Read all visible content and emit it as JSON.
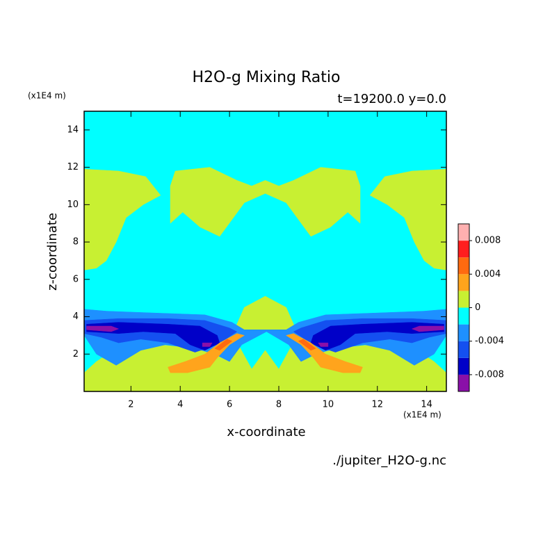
{
  "chart_data": {
    "type": "contour",
    "title": "H2O-g Mixing Ratio",
    "subtitle": "t=19200.0 y=0.0",
    "x_label": "x-coordinate",
    "y_label": "z-coordinate",
    "x_unit": "(x1E4 m)",
    "y_unit": "(x1E4 m)",
    "footer": "./jupiter_H2O-g.nc",
    "xlim": [
      0.1,
      14.8
    ],
    "ylim": [
      0,
      15
    ],
    "xticks": [
      2,
      4,
      6,
      8,
      10,
      12,
      14
    ],
    "yticks": [
      2,
      4,
      6,
      8,
      10,
      12,
      14
    ],
    "levels": [
      -0.01,
      -0.008,
      -0.006,
      -0.004,
      -0.002,
      0,
      0.002,
      0.004,
      0.006,
      0.008,
      0.01
    ],
    "colors": [
      "#8a10a8",
      "#0000c8",
      "#1450f0",
      "#1e90ff",
      "#00ffff",
      "#c8f032",
      "#ffa41c",
      "#ff6a10",
      "#ff1e1e",
      "#ffb0b0"
    ],
    "colorbar_ticks": [
      -0.008,
      -0.004,
      0,
      0.004,
      0.008
    ],
    "regions": [
      {
        "level": -0.002,
        "x": [
          0.1,
          14.8,
          14.8,
          0.1
        ],
        "y": [
          0,
          0,
          15,
          15
        ]
      },
      {
        "level": 0,
        "x": [
          0.1,
          14.8,
          14.8,
          14.3,
          13.5,
          12.5,
          11,
          10,
          9.4,
          8.5,
          8.0,
          7.45,
          6.9,
          6.4,
          5.5,
          4.9,
          3.9,
          2.4,
          1.4,
          0.6,
          0.1
        ],
        "y": [
          0,
          0,
          1.0,
          1.6,
          2.3,
          2.6,
          2.4,
          2.8,
          2.9,
          2.4,
          1.2,
          2.2,
          1.2,
          2.4,
          2.9,
          2.8,
          2.4,
          2.6,
          2.3,
          1.6,
          1.0
        ]
      },
      {
        "level": 0,
        "x": [
          6.2,
          6.6,
          7.45,
          8.3,
          8.7
        ],
        "y": [
          3.3,
          4.5,
          5.1,
          4.5,
          3.3
        ]
      },
      {
        "level": 0,
        "x": [
          0.1,
          0.1,
          1.5,
          2.6,
          3.2,
          2.5,
          1.8,
          1.4,
          1.0,
          0.6
        ],
        "y": [
          6.5,
          11.9,
          11.8,
          11.5,
          10.5,
          10.0,
          9.3,
          8.0,
          7.0,
          6.6
        ]
      },
      {
        "level": 0,
        "x": [
          14.8,
          14.8,
          13.4,
          12.3,
          11.7,
          12.4,
          13.1,
          13.5,
          13.9,
          14.3
        ],
        "y": [
          6.5,
          11.9,
          11.8,
          11.5,
          10.5,
          10.0,
          9.3,
          8.0,
          7.0,
          6.6
        ]
      },
      {
        "level": 0,
        "x": [
          3.8,
          5.2,
          6.3,
          6.9,
          7.45,
          8.0,
          8.6,
          9.7,
          11.1,
          11.3,
          11.3,
          10.8,
          10.1,
          9.3,
          8.8,
          8.3,
          7.45,
          6.6,
          6.1,
          5.6,
          4.8,
          4.1,
          3.6,
          3.6
        ],
        "y": [
          11.8,
          12.0,
          11.3,
          11.0,
          11.3,
          11.0,
          11.3,
          12.0,
          11.8,
          11.0,
          9.0,
          9.6,
          8.8,
          8.3,
          9.2,
          10.1,
          10.6,
          10.1,
          9.2,
          8.3,
          8.8,
          9.6,
          9.0,
          11.0
        ]
      },
      {
        "level": -0.004,
        "x": [
          0.1,
          0.1,
          1,
          3,
          5,
          6.1,
          6.6,
          8.3,
          8.8,
          9.9,
          11.9,
          13.9,
          14.8,
          14.8,
          14.3,
          13.5,
          12.5,
          11.5,
          10.3,
          9.5,
          8.9,
          8.4,
          7.5,
          6.5,
          6.0,
          5.4,
          4.6,
          3.4,
          2.4,
          1.4,
          0.6
        ],
        "y": [
          3.0,
          4.4,
          4.3,
          4.2,
          4.1,
          3.7,
          3.3,
          3.3,
          3.7,
          4.1,
          4.2,
          4.3,
          4.4,
          3.0,
          2.0,
          1.4,
          2.2,
          2.5,
          2.3,
          2.0,
          1.6,
          2.5,
          3.2,
          2.5,
          1.6,
          2.0,
          2.3,
          2.5,
          2.2,
          1.4,
          2.0
        ]
      },
      {
        "level": -0.006,
        "x": [
          0.1,
          0.1,
          1.5,
          3.5,
          5.0,
          6.0,
          6.3,
          5.5,
          4.6,
          3.5,
          2.4,
          1.5,
          0.8
        ],
        "y": [
          3.1,
          3.8,
          3.9,
          3.9,
          3.8,
          3.4,
          3.2,
          2.5,
          2.1,
          2.6,
          2.8,
          2.6,
          2.9
        ]
      },
      {
        "level": -0.006,
        "x": [
          14.8,
          14.8,
          13.4,
          11.4,
          9.9,
          8.9,
          8.6,
          9.4,
          10.3,
          11.4,
          12.5,
          13.4,
          14.1
        ],
        "y": [
          3.1,
          3.8,
          3.9,
          3.9,
          3.8,
          3.4,
          3.2,
          2.5,
          2.1,
          2.6,
          2.8,
          2.6,
          2.9
        ]
      },
      {
        "level": -0.008,
        "x": [
          0.2,
          0.2,
          1.5,
          3.5,
          4.8,
          5.5,
          5.6,
          5.0,
          4.4,
          3.8,
          2.5,
          1.5
        ],
        "y": [
          3.2,
          3.6,
          3.7,
          3.6,
          3.5,
          3.0,
          2.6,
          2.2,
          2.5,
          3.1,
          3.2,
          3.1
        ]
      },
      {
        "level": -0.008,
        "x": [
          14.7,
          14.7,
          13.4,
          11.4,
          10.1,
          9.4,
          9.3,
          9.9,
          10.5,
          11.1,
          12.4,
          13.4
        ],
        "y": [
          3.2,
          3.6,
          3.7,
          3.6,
          3.5,
          3.0,
          2.6,
          2.2,
          2.5,
          3.1,
          3.2,
          3.1
        ]
      },
      {
        "level": -0.01,
        "x": [
          0.2,
          0.2,
          1.2,
          1.5,
          1.2
        ],
        "y": [
          3.3,
          3.5,
          3.5,
          3.35,
          3.2
        ]
      },
      {
        "level": -0.01,
        "x": [
          4.9,
          5.3,
          5.2,
          4.9
        ],
        "y": [
          2.6,
          2.6,
          2.4,
          2.4
        ]
      },
      {
        "level": -0.01,
        "x": [
          14.7,
          14.7,
          13.7,
          13.4,
          13.7
        ],
        "y": [
          3.3,
          3.5,
          3.5,
          3.35,
          3.2
        ]
      },
      {
        "level": -0.01,
        "x": [
          10.0,
          9.6,
          9.7,
          10.0
        ],
        "y": [
          2.6,
          2.6,
          2.4,
          2.4
        ]
      },
      {
        "level": 0.002,
        "x": [
          3.5,
          4.2,
          5.0,
          5.6,
          6.3,
          6.6,
          6.0,
          5.5,
          5.2,
          4.3,
          3.6
        ],
        "y": [
          1.3,
          1.6,
          2.0,
          2.6,
          3.1,
          3.0,
          2.5,
          1.8,
          1.3,
          1.0,
          1.0
        ]
      },
      {
        "level": 0.002,
        "x": [
          11.4,
          10.7,
          9.9,
          9.3,
          8.6,
          8.3,
          8.9,
          9.4,
          9.7,
          10.6,
          11.3
        ],
        "y": [
          1.3,
          1.6,
          2.0,
          2.6,
          3.1,
          3.0,
          2.5,
          1.8,
          1.3,
          1.0,
          1.0
        ]
      },
      {
        "level": 0.004,
        "x": [
          5.4,
          5.9,
          6.1,
          5.6
        ],
        "y": [
          2.3,
          2.8,
          2.7,
          2.2
        ]
      },
      {
        "level": 0.004,
        "x": [
          9.5,
          9.0,
          8.8,
          9.3
        ],
        "y": [
          2.3,
          2.8,
          2.7,
          2.2
        ]
      }
    ]
  }
}
